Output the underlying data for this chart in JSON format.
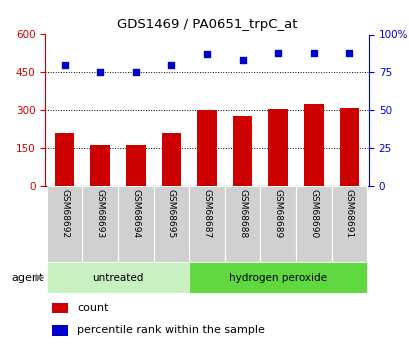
{
  "title": "GDS1469 / PA0651_trpC_at",
  "samples": [
    "GSM68692",
    "GSM68693",
    "GSM68694",
    "GSM68695",
    "GSM68687",
    "GSM68688",
    "GSM68689",
    "GSM68690",
    "GSM68691"
  ],
  "counts": [
    210,
    165,
    163,
    210,
    300,
    278,
    305,
    325,
    308
  ],
  "percentiles": [
    80,
    75,
    75,
    80,
    87,
    83,
    88,
    88,
    88
  ],
  "groups": [
    "untreated",
    "untreated",
    "untreated",
    "untreated",
    "hydrogen peroxide",
    "hydrogen peroxide",
    "hydrogen peroxide",
    "hydrogen peroxide",
    "hydrogen peroxide"
  ],
  "group_colors": {
    "untreated": "#c8f0c0",
    "hydrogen peroxide": "#60d840"
  },
  "bar_color": "#cc0000",
  "dot_color": "#0000cc",
  "left_ylim": [
    0,
    600
  ],
  "right_ylim": [
    0,
    100
  ],
  "left_yticks": [
    0,
    150,
    300,
    450,
    600
  ],
  "left_yticklabels": [
    "0",
    "150",
    "300",
    "450",
    "600"
  ],
  "right_yticks": [
    0,
    25,
    50,
    75,
    100
  ],
  "right_yticklabels": [
    "0",
    "25",
    "50",
    "75",
    "100%"
  ],
  "grid_lines": [
    150,
    300,
    450
  ],
  "agent_label": "agent",
  "legend_count_label": "count",
  "legend_pct_label": "percentile rank within the sample",
  "bg_color": "#ffffff",
  "grey_col_color": "#d0d0d0"
}
